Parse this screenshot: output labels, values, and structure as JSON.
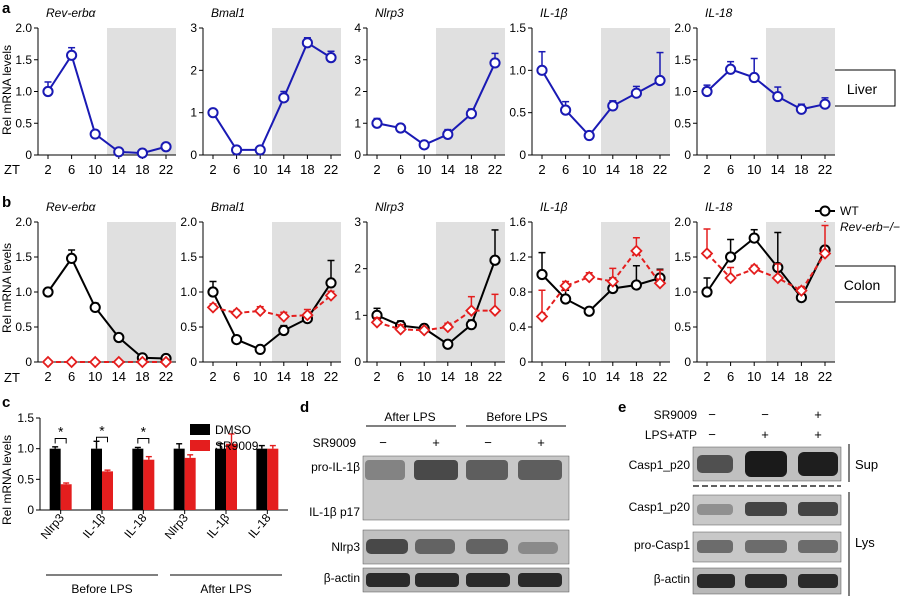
{
  "panels": {
    "a": "a",
    "b": "b",
    "c": "c",
    "d": "d",
    "e": "e"
  },
  "colors": {
    "blue": "#1a1ab4",
    "black": "#000000",
    "red": "#e41e1e",
    "grey": "#e0e0e0"
  },
  "chart_data": [
    {
      "type": "line",
      "id": "a1",
      "title": "Rev-erbα",
      "ylabel": "Rel mRNA levels",
      "x": [
        2,
        6,
        10,
        14,
        18,
        22
      ],
      "ylim": [
        0,
        2.0
      ],
      "yticks": [
        "0",
        "0.5",
        "1.0",
        "1.5",
        "2.0"
      ],
      "series": [
        {
          "name": "Liver",
          "color": "blue",
          "values": [
            1.0,
            1.57,
            0.33,
            0.05,
            0.03,
            0.13
          ],
          "err": [
            0.15,
            0.12,
            0.05,
            0.02,
            0.02,
            0.03
          ]
        }
      ]
    },
    {
      "type": "line",
      "id": "a2",
      "title": "Bmal1",
      "x": [
        2,
        6,
        10,
        14,
        18,
        22
      ],
      "ylim": [
        0,
        3
      ],
      "yticks": [
        "0",
        "1",
        "2",
        "3"
      ],
      "series": [
        {
          "name": "Liver",
          "color": "blue",
          "values": [
            1.0,
            0.12,
            0.12,
            1.35,
            2.65,
            2.3
          ],
          "err": [
            0.05,
            0.03,
            0.03,
            0.15,
            0.12,
            0.15
          ]
        }
      ]
    },
    {
      "type": "line",
      "id": "a3",
      "title": "Nlrp3",
      "x": [
        2,
        6,
        10,
        14,
        18,
        22
      ],
      "ylim": [
        0,
        4
      ],
      "yticks": [
        "0",
        "1",
        "2",
        "3",
        "4"
      ],
      "series": [
        {
          "name": "Liver",
          "color": "blue",
          "values": [
            1.0,
            0.85,
            0.32,
            0.65,
            1.3,
            2.9
          ],
          "err": [
            0.15,
            0.05,
            0.05,
            0.15,
            0.15,
            0.3
          ]
        }
      ]
    },
    {
      "type": "line",
      "id": "a4",
      "title": "IL-1β",
      "x": [
        2,
        6,
        10,
        14,
        18,
        22
      ],
      "ylim": [
        0,
        1.5
      ],
      "yticks": [
        "0",
        "0.5",
        "1.0",
        "1.5"
      ],
      "series": [
        {
          "name": "Liver",
          "color": "blue",
          "values": [
            1.0,
            0.53,
            0.23,
            0.58,
            0.73,
            0.88
          ],
          "err": [
            0.22,
            0.1,
            0.02,
            0.06,
            0.08,
            0.33
          ]
        }
      ]
    },
    {
      "type": "line",
      "id": "a5",
      "title": "IL-18",
      "x": [
        2,
        6,
        10,
        14,
        18,
        22
      ],
      "ylim": [
        0,
        2.0
      ],
      "yticks": [
        "0",
        "0.5",
        "1.0",
        "1.5",
        "2.0"
      ],
      "series": [
        {
          "name": "Liver",
          "color": "blue",
          "values": [
            1.0,
            1.35,
            1.22,
            0.92,
            0.72,
            0.8
          ],
          "err": [
            0.1,
            0.12,
            0.3,
            0.15,
            0.08,
            0.1
          ]
        }
      ]
    },
    {
      "type": "line",
      "id": "b1",
      "title": "Rev-erbα",
      "ylabel": "Rel mRNA levels",
      "x": [
        2,
        6,
        10,
        14,
        18,
        22
      ],
      "ylim": [
        0,
        2.0
      ],
      "yticks": [
        "0",
        "0.5",
        "1.0",
        "1.5",
        "2.0"
      ],
      "series": [
        {
          "name": "WT",
          "color": "black",
          "values": [
            1.0,
            1.48,
            0.78,
            0.35,
            0.06,
            0.05
          ],
          "err": [
            0.05,
            0.12,
            0.06,
            0.02,
            0.02,
            0.02
          ]
        },
        {
          "name": "Rev-erb−/−",
          "color": "red",
          "values": [
            0.0,
            0.0,
            0.0,
            0.0,
            0.0,
            0.0
          ],
          "err": [
            0,
            0,
            0,
            0,
            0,
            0
          ]
        }
      ]
    },
    {
      "type": "line",
      "id": "b2",
      "title": "Bmal1",
      "x": [
        2,
        6,
        10,
        14,
        18,
        22
      ],
      "ylim": [
        0,
        2.0
      ],
      "yticks": [
        "0",
        "0.5",
        "1.0",
        "1.5",
        "2.0"
      ],
      "series": [
        {
          "name": "WT",
          "color": "black",
          "values": [
            1.0,
            0.32,
            0.18,
            0.45,
            0.62,
            1.13
          ],
          "err": [
            0.15,
            0.05,
            0.03,
            0.07,
            0.08,
            0.32
          ]
        },
        {
          "name": "Rev-erb−/−",
          "color": "red",
          "values": [
            0.78,
            0.7,
            0.73,
            0.65,
            0.67,
            0.95
          ],
          "err": [
            0.05,
            0.04,
            0.06,
            0.06,
            0.08,
            0.06
          ]
        }
      ]
    },
    {
      "type": "line",
      "id": "b3",
      "title": "Nlrp3",
      "x": [
        2,
        6,
        10,
        14,
        18,
        22
      ],
      "ylim": [
        0,
        3
      ],
      "yticks": [
        "0",
        "1",
        "2",
        "3"
      ],
      "series": [
        {
          "name": "WT",
          "color": "black",
          "values": [
            1.0,
            0.78,
            0.72,
            0.38,
            0.8,
            2.18
          ],
          "err": [
            0.15,
            0.1,
            0.08,
            0.05,
            0.1,
            0.65
          ]
        },
        {
          "name": "Rev-erb−/−",
          "color": "red",
          "values": [
            0.85,
            0.7,
            0.68,
            0.75,
            1.1,
            1.1
          ],
          "err": [
            0.1,
            0.1,
            0.05,
            0.08,
            0.3,
            0.35
          ]
        }
      ]
    },
    {
      "type": "line",
      "id": "b4",
      "title": "IL-1β",
      "x": [
        2,
        6,
        10,
        14,
        18,
        22
      ],
      "ylim": [
        0,
        1.6
      ],
      "yticks": [
        "0",
        "0.4",
        "0.8",
        "1.2",
        "1.6"
      ],
      "series": [
        {
          "name": "WT",
          "color": "black",
          "values": [
            1.0,
            0.72,
            0.58,
            0.84,
            0.88,
            0.96
          ],
          "err": [
            0.25,
            0.1,
            0.02,
            0.12,
            0.22,
            0.1
          ]
        },
        {
          "name": "Rev-erb−/−",
          "color": "red",
          "values": [
            0.52,
            0.87,
            0.97,
            0.92,
            1.27,
            0.9
          ],
          "err": [
            0.3,
            0.05,
            0.05,
            0.15,
            0.15,
            0.15
          ]
        }
      ]
    },
    {
      "type": "line",
      "id": "b5",
      "title": "IL-18",
      "x": [
        2,
        6,
        10,
        14,
        18,
        22
      ],
      "ylim": [
        0,
        2.0
      ],
      "yticks": [
        "0",
        "0.5",
        "1.0",
        "1.5",
        "2.0"
      ],
      "series": [
        {
          "name": "WT",
          "color": "black",
          "values": [
            1.0,
            1.5,
            1.77,
            1.35,
            0.92,
            1.6
          ],
          "err": [
            0.2,
            0.25,
            0.12,
            0.5,
            0.05,
            0.05
          ]
        },
        {
          "name": "Rev-erb−/−",
          "color": "red",
          "values": [
            1.55,
            1.2,
            1.33,
            1.2,
            1.02,
            1.55
          ],
          "err": [
            0.35,
            0.15,
            0.05,
            0.2,
            0.05,
            0.4
          ]
        }
      ]
    },
    {
      "type": "bar",
      "id": "c",
      "ylabel": "Rel mRNA levels",
      "ylim": [
        0,
        1.5
      ],
      "yticks": [
        "0",
        "0.5",
        "1.0",
        "1.5"
      ],
      "categories": [
        "Nlrp3",
        "IL-1β",
        "IL-18",
        "Nlrp3",
        "IL-1β",
        "IL-18"
      ],
      "groups": [
        "Before LPS",
        "After LPS"
      ],
      "series": [
        {
          "name": "DMSO",
          "color": "black",
          "values": [
            1.0,
            1.0,
            1.0,
            1.0,
            1.0,
            1.0
          ],
          "err": [
            0.03,
            0.12,
            0.02,
            0.08,
            0.08,
            0.05
          ]
        },
        {
          "name": "SR9009",
          "color": "red",
          "values": [
            0.42,
            0.63,
            0.82,
            0.85,
            1.08,
            1.0
          ],
          "err": [
            0.02,
            0.02,
            0.05,
            0.05,
            0.16,
            0.05
          ]
        }
      ],
      "significance": [
        "*",
        "*",
        "*"
      ]
    }
  ],
  "zt_label": "ZT",
  "zt_ticks": [
    "2",
    "6",
    "10",
    "14",
    "18",
    "22"
  ],
  "tissue_labels": {
    "liver": "Liver",
    "colon": "Colon"
  },
  "legend_b": {
    "wt": "WT",
    "ko": "Rev-erb−/−"
  },
  "blot_d": {
    "group1": "After LPS",
    "group2": "Before LPS",
    "treatment": "SR9009",
    "signs": [
      "−",
      "+",
      "−",
      "+"
    ],
    "rows": [
      "pro-IL-1β",
      "IL-1β p17",
      "Nlrp3",
      "β-actin"
    ]
  },
  "blot_e": {
    "treatments": [
      {
        "label": "SR9009",
        "signs": [
          "−",
          "−",
          "+"
        ]
      },
      {
        "label": "LPS+ATP",
        "signs": [
          "−",
          "+",
          "+"
        ]
      }
    ],
    "rows": [
      "Casp1_p20",
      "Casp1_p20",
      "pro-Casp1",
      "β-actin"
    ],
    "sup": "Sup",
    "lys": "Lys"
  }
}
